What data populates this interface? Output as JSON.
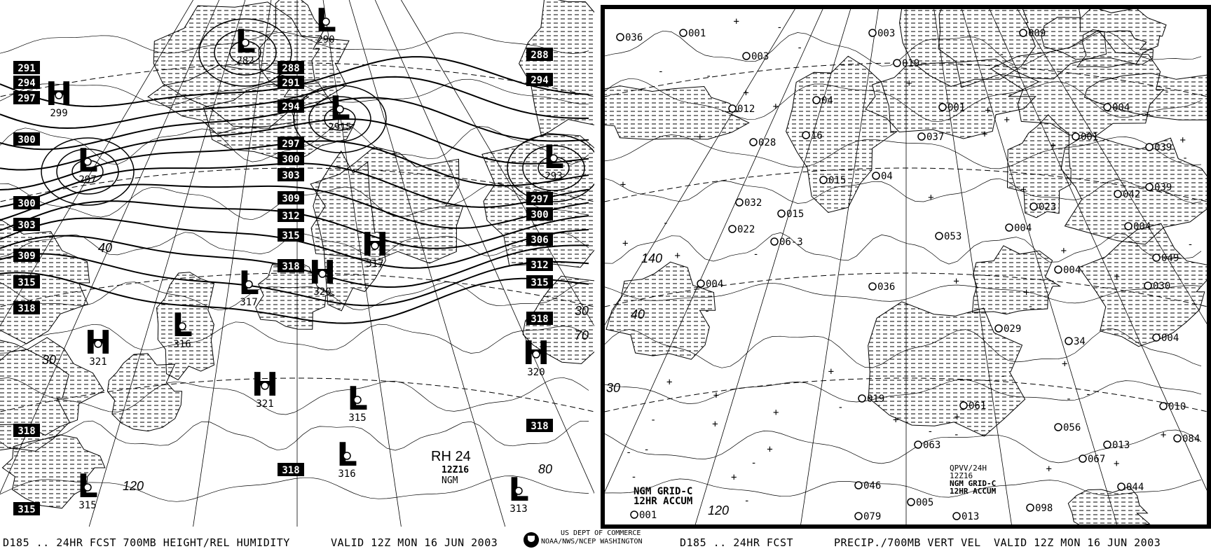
{
  "left_panel": {
    "caption_left": "D185 .. 24HR FCST 700MB HEIGHT/REL HUMIDITY",
    "caption_valid": "VALID 12Z MON 16 JUN 2003",
    "inset_title": "RH 24",
    "inset_time": "12Z16",
    "inset_model": "NGM",
    "height_labels": [
      "291",
      "294",
      "297",
      "300",
      "300",
      "303",
      "309",
      "315",
      "318",
      "318",
      "315",
      "288",
      "291",
      "294",
      "297",
      "300",
      "303",
      "309",
      "312",
      "315",
      "318",
      "318",
      "288",
      "294",
      "297",
      "300",
      "306",
      "312",
      "315",
      "318",
      "318"
    ],
    "centers": [
      {
        "type": "H",
        "value": "299"
      },
      {
        "type": "L",
        "value": "297"
      },
      {
        "type": "L",
        "value": "282"
      },
      {
        "type": "L",
        "value": "290"
      },
      {
        "type": "L",
        "value": "2915"
      },
      {
        "type": "L",
        "value": "293"
      },
      {
        "type": "H",
        "value": "317"
      },
      {
        "type": "H",
        "value": "320"
      },
      {
        "type": "L",
        "value": "317"
      },
      {
        "type": "L",
        "value": "316"
      },
      {
        "type": "H",
        "value": "321"
      },
      {
        "type": "H",
        "value": "321"
      },
      {
        "type": "L",
        "value": "315"
      },
      {
        "type": "L",
        "value": "316"
      },
      {
        "type": "L",
        "value": "315"
      },
      {
        "type": "H",
        "value": "320"
      },
      {
        "type": "L",
        "value": "313"
      }
    ],
    "grid_labels": [
      "30",
      "40",
      "120",
      "70",
      "80",
      "30"
    ]
  },
  "right_panel": {
    "caption_left": "D185 .. 24HR FCST",
    "caption_mid": "PRECIP./700MB VERT VEL",
    "caption_valid": "VALID 12Z MON 16 JUN 2003",
    "inset_left_line1": "NGM GRID-C",
    "inset_left_line2": "12HR ACCUM",
    "inset_right_line1": "QPVV/24H",
    "inset_right_line2": "12Z16",
    "inset_right_line3": "NGM GRID-C",
    "inset_right_line4": "12HR ACCUM",
    "precip_labels": [
      "036",
      "001",
      "003",
      "003",
      "019",
      "009",
      "012",
      "028",
      "16",
      "04",
      "001",
      "037",
      "004",
      "001",
      "039",
      "015",
      "04",
      "032",
      "015",
      "022",
      "06-3",
      "053",
      "023",
      "042",
      "039",
      "004",
      "004",
      "049",
      "004",
      "036",
      "030",
      "029",
      "34",
      "004",
      "004",
      "019",
      "061",
      "010",
      "056",
      "084",
      "063",
      "013",
      "067",
      "046",
      "005",
      "044",
      "079",
      "013",
      "098",
      "001"
    ],
    "grid_labels": [
      "140",
      "40",
      "30",
      "120"
    ]
  },
  "agency": {
    "line1": "US DEPT OF COMMERCE",
    "line2": "NOAA/NWS/NCEP WASHINGTON"
  },
  "colors": {
    "ink": "#000000",
    "background": "#ffffff"
  }
}
